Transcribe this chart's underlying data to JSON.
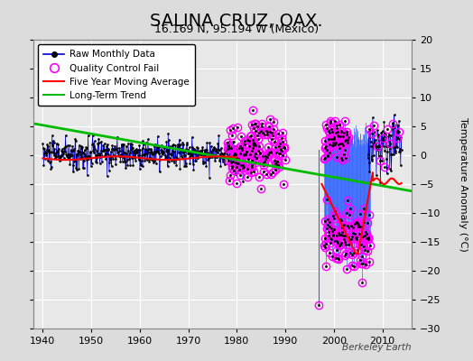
{
  "title": "SALINA CRUZ, OAX.",
  "subtitle": "16.169 N, 95.194 W (Mexico)",
  "ylabel": "Temperature Anomaly (°C)",
  "watermark": "Berkeley Earth",
  "xlim": [
    1938,
    2016
  ],
  "ylim": [
    -30,
    20
  ],
  "yticks": [
    -30,
    -25,
    -20,
    -15,
    -10,
    -5,
    0,
    5,
    10,
    15,
    20
  ],
  "xticks": [
    1940,
    1950,
    1960,
    1970,
    1980,
    1990,
    2000,
    2010
  ],
  "bg_color": "#dcdcdc",
  "plot_bg": "#e8e8e8",
  "grid_color": "#ffffff",
  "raw_line_color": "#0000ff",
  "raw_dot_color": "#000000",
  "qc_color": "#ff00ff",
  "ma_color": "#ff0000",
  "trend_color": "#00bb00",
  "title_fontsize": 14,
  "subtitle_fontsize": 9,
  "legend_fontsize": 8,
  "trend_x": [
    1938,
    2016
  ],
  "trend_y": [
    5.5,
    -6.2
  ]
}
